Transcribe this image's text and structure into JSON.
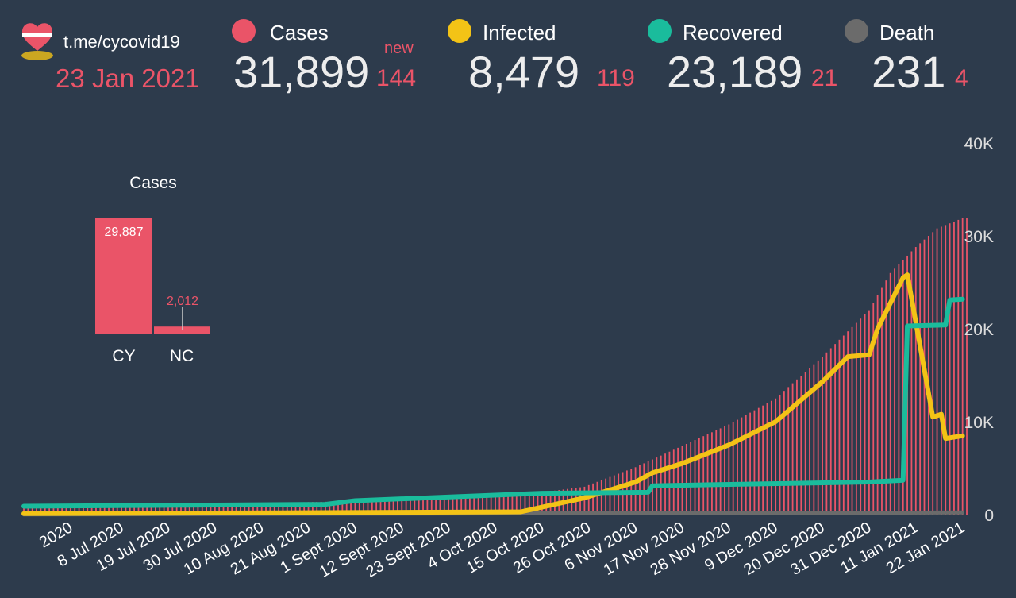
{
  "header": {
    "channel": "t.me/cycovid19",
    "date": "23 Jan 2021",
    "new_label": "new",
    "stats": [
      {
        "key": "cases",
        "label": "Cases",
        "value": "31,899",
        "delta": "144",
        "color": "#ea5468"
      },
      {
        "key": "infected",
        "label": "Infected",
        "value": "8,479",
        "delta": "119",
        "color": "#f3c316"
      },
      {
        "key": "recovered",
        "label": "Recovered",
        "value": "23,189",
        "delta": "21",
        "color": "#1abc9c"
      },
      {
        "key": "death",
        "label": "Death",
        "value": "231",
        "delta": "4",
        "color": "#6b6b6b"
      }
    ]
  },
  "colors": {
    "background": "#2d3b4c",
    "cases": "#ea5468",
    "infected": "#f3c316",
    "recovered": "#1abc9c",
    "death": "#6b6b6b"
  },
  "chart_data": [
    {
      "type": "bar",
      "title": "Cases",
      "categories": [
        "CY",
        "NC"
      ],
      "values": [
        29887,
        2012
      ],
      "value_labels": [
        "29,887",
        "2,012"
      ]
    },
    {
      "type": "bar+line",
      "yticks": [
        "0",
        "10K",
        "20K",
        "30K",
        "40K"
      ],
      "ylim": [
        0,
        40000
      ],
      "xlim": [
        "2020-06-15",
        "2021-01-23"
      ],
      "x_tick_labels": [
        "2020",
        "8 Jul 2020",
        "19 Jul 2020",
        "30 Jul 2020",
        "10 Aug 2020",
        "21 Aug 2020",
        "1 Sept 2020",
        "12 Sept 2020",
        "23 Sept 2020",
        "4 Oct 2020",
        "15 Oct 2020",
        "26 Oct 2020",
        "6 Nov 2020",
        "17 Nov 2020",
        "28 Nov 2020",
        "9 Dec 2020",
        "20 Dec 2020",
        "31 Dec 2020",
        "11 Jan 2021",
        "22 Jan 2021"
      ],
      "x_tick_dates": [
        "2020-06-26",
        "2020-07-08",
        "2020-07-19",
        "2020-07-30",
        "2020-08-10",
        "2020-08-21",
        "2020-09-01",
        "2020-09-12",
        "2020-09-23",
        "2020-10-04",
        "2020-10-15",
        "2020-10-26",
        "2020-11-06",
        "2020-11-17",
        "2020-11-28",
        "2020-12-09",
        "2020-12-20",
        "2020-12-31",
        "2021-01-11",
        "2021-01-22"
      ],
      "series": [
        {
          "name": "Cases",
          "kind": "bar",
          "dates": [
            "2020-06-15",
            "2020-07-15",
            "2020-08-15",
            "2020-09-01",
            "2020-09-20",
            "2020-10-10",
            "2020-10-25",
            "2020-11-06",
            "2020-11-17",
            "2020-11-28",
            "2020-12-09",
            "2020-12-20",
            "2020-12-31",
            "2021-01-05",
            "2021-01-11",
            "2021-01-16",
            "2021-01-22"
          ],
          "values": [
            990,
            1030,
            1280,
            1450,
            1700,
            2100,
            3000,
            5100,
            7400,
            9700,
            12500,
            17000,
            22000,
            26000,
            28800,
            30800,
            31899
          ]
        },
        {
          "name": "Infected",
          "kind": "line",
          "dates": [
            "2020-06-15",
            "2020-08-15",
            "2020-10-10",
            "2020-10-25",
            "2020-11-06",
            "2020-11-10",
            "2020-11-17",
            "2020-11-28",
            "2020-12-09",
            "2020-12-20",
            "2020-12-26",
            "2020-12-31",
            "2021-01-02",
            "2021-01-08",
            "2021-01-09",
            "2021-01-15",
            "2021-01-17",
            "2021-01-18",
            "2021-01-22"
          ],
          "values": [
            100,
            200,
            300,
            1800,
            3500,
            4500,
            5500,
            7500,
            10000,
            14300,
            17000,
            17200,
            20000,
            25500,
            25800,
            10500,
            10800,
            8200,
            8479
          ]
        },
        {
          "name": "Recovered",
          "kind": "line",
          "dates": [
            "2020-06-15",
            "2020-08-25",
            "2020-09-01",
            "2020-10-15",
            "2020-11-09",
            "2020-11-10",
            "2020-12-31",
            "2021-01-08",
            "2021-01-09",
            "2021-01-18",
            "2021-01-19",
            "2021-01-22"
          ],
          "values": [
            900,
            1100,
            1500,
            2300,
            2400,
            3100,
            3500,
            3700,
            20300,
            20400,
            23100,
            23189
          ]
        },
        {
          "name": "Death",
          "kind": "line",
          "dates": [
            "2020-06-15",
            "2021-01-22"
          ],
          "values": [
            19,
            231
          ]
        }
      ]
    }
  ]
}
